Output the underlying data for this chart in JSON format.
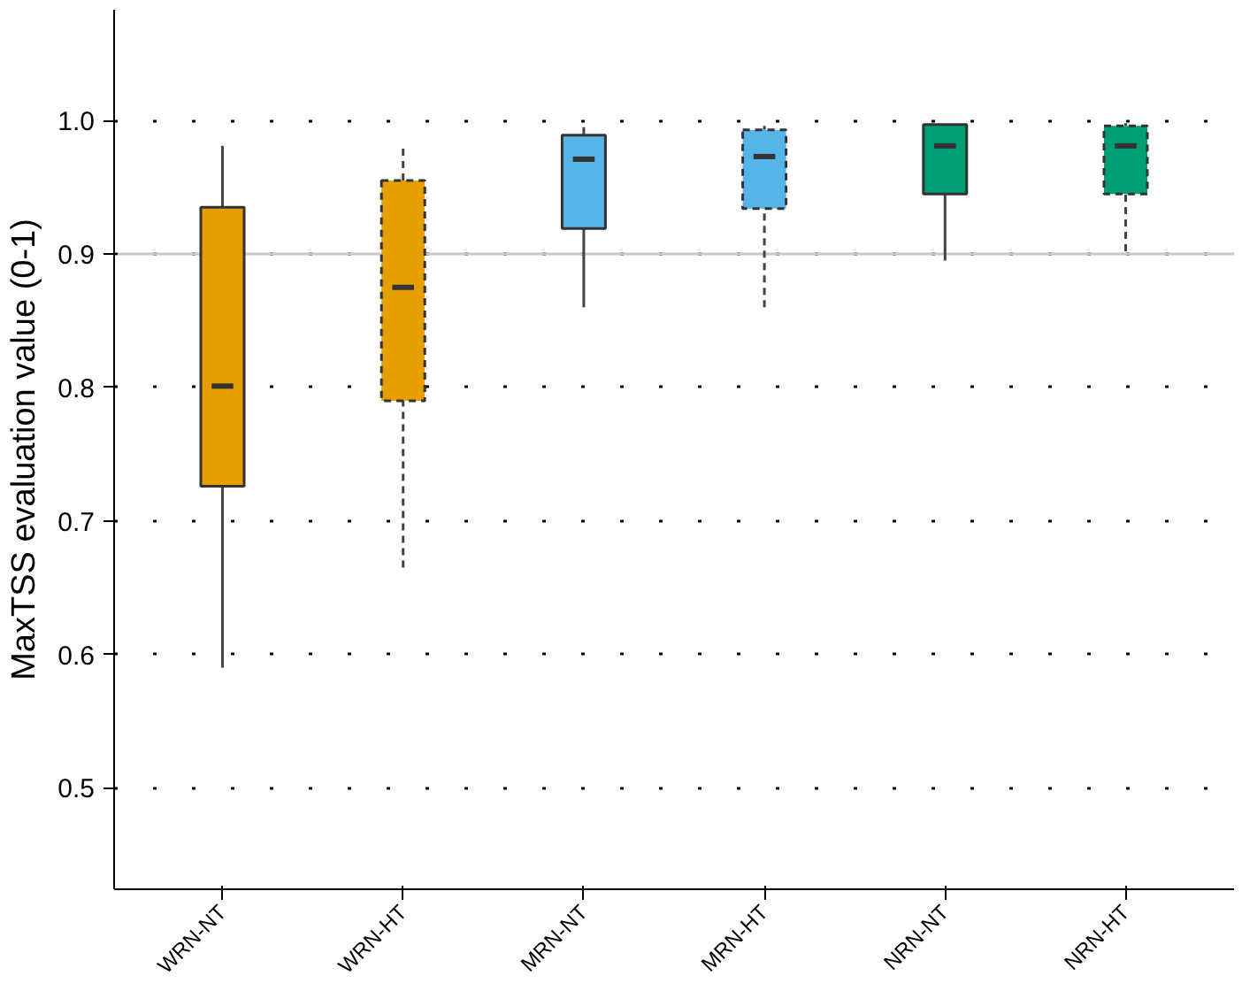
{
  "chart_data": {
    "type": "box",
    "ylabel": "MaxTSS evaluation value (0-1)",
    "categories": [
      "WRN-NT",
      "WRN-HT",
      "MRN-NT",
      "MRN-HT",
      "NRN-NT",
      "NRN-HT"
    ],
    "series": [
      {
        "line_style": "solid",
        "colors": [
          "#e69f00",
          null,
          "#56b4e9",
          null,
          "#009e73",
          null
        ],
        "boxes": [
          {
            "low": 0.59,
            "q1": 0.726,
            "median": 0.801,
            "q3": 0.935,
            "high": 0.981
          },
          null,
          {
            "low": 0.86,
            "q1": 0.919,
            "median": 0.971,
            "q3": 0.989,
            "high": 0.995
          },
          null,
          {
            "low": 0.895,
            "q1": 0.945,
            "median": 0.981,
            "q3": 0.997,
            "high": 0.997
          },
          null
        ]
      },
      {
        "line_style": "dashed",
        "colors": [
          null,
          "#e69f00",
          null,
          "#56b4e9",
          null,
          "#009e73"
        ],
        "boxes": [
          null,
          {
            "low": 0.665,
            "q1": 0.79,
            "median": 0.875,
            "q3": 0.955,
            "high": 0.98
          },
          null,
          {
            "low": 0.86,
            "q1": 0.934,
            "median": 0.973,
            "q3": 0.993,
            "high": 0.996
          },
          null,
          {
            "low": 0.902,
            "q1": 0.945,
            "median": 0.981,
            "q3": 0.996,
            "high": 0.998
          }
        ]
      }
    ],
    "ylim": [
      0.424,
      1.083
    ],
    "yticks": [
      {
        "value": 0.5,
        "label": "0.5"
      },
      {
        "value": 0.6,
        "label": "0.6"
      },
      {
        "value": 0.7,
        "label": "0.7"
      },
      {
        "value": 0.8,
        "label": "0.8"
      },
      {
        "value": 0.9,
        "label": "0.9"
      },
      {
        "value": 1.0,
        "label": "1.0"
      }
    ],
    "ref_lines": [
      {
        "axis": "y",
        "value": 0.9,
        "color": "#c8c8c8"
      }
    ],
    "grid": "y"
  }
}
